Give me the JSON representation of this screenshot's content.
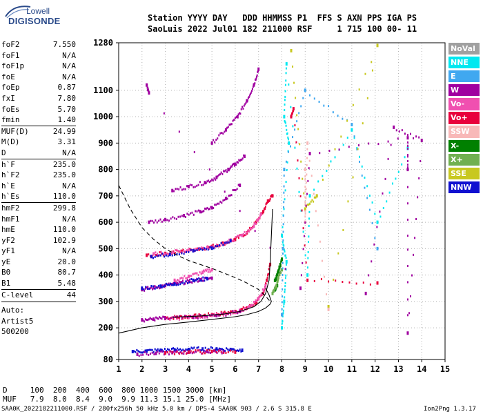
{
  "logo": {
    "line1": "Lowell",
    "line2": "DIGISONDE"
  },
  "header": {
    "line1": "Station YYYY DAY   DDD HHMMSS P1  FFS S AXN PPS IGA PS",
    "line2": "SaoLuis 2022 Jul01 182 211000 RSF     1 715 100 00- 11"
  },
  "params": [
    {
      "label": "foF2",
      "value": "7.550"
    },
    {
      "label": "foF1",
      "value": "N/A"
    },
    {
      "label": "foF1p",
      "value": "N/A"
    },
    {
      "label": "foE",
      "value": "N/A"
    },
    {
      "label": "foEp",
      "value": "0.87"
    },
    {
      "label": "fxI",
      "value": "7.80"
    },
    {
      "label": "foEs",
      "value": "5.70"
    },
    {
      "label": "fmin",
      "value": "1.40"
    },
    {
      "label": "MUF(D)",
      "value": "24.99",
      "sep": true
    },
    {
      "label": "M(D)",
      "value": "3.31"
    },
    {
      "label": "D",
      "value": "N/A"
    },
    {
      "label": "h`F",
      "value": "235.0",
      "sep": true
    },
    {
      "label": "h`F2",
      "value": "235.0"
    },
    {
      "label": "h`E",
      "value": "N/A"
    },
    {
      "label": "h`Es",
      "value": "110.0"
    },
    {
      "label": "hmF2",
      "value": "299.8",
      "sep": true
    },
    {
      "label": "hmF1",
      "value": "N/A"
    },
    {
      "label": "hmE",
      "value": "110.0"
    },
    {
      "label": "yF2",
      "value": "102.9"
    },
    {
      "label": "yF1",
      "value": "N/A"
    },
    {
      "label": "yE",
      "value": "20.0"
    },
    {
      "label": "B0",
      "value": "80.7"
    },
    {
      "label": "B1",
      "value": "5.48"
    },
    {
      "label": "C-level",
      "value": "44",
      "sep": true
    }
  ],
  "auto": [
    "Auto:",
    "Artist5",
    "500200"
  ],
  "legend": [
    {
      "label": "NoVal",
      "color": "#a0a0a0"
    },
    {
      "label": "NNE",
      "color": "#00e8f0"
    },
    {
      "label": "E",
      "color": "#40a8f0"
    },
    {
      "label": "W",
      "color": "#a000a0"
    },
    {
      "label": "Vo-",
      "color": "#f050b0"
    },
    {
      "label": "Vo+",
      "color": "#e8003c"
    },
    {
      "label": "SSW",
      "color": "#f8b8b8"
    },
    {
      "label": "X-",
      "color": "#008000"
    },
    {
      "label": "X+",
      "color": "#70b050"
    },
    {
      "label": "SSE",
      "color": "#c8c820"
    },
    {
      "label": "NNW",
      "color": "#1010d0"
    }
  ],
  "muf_table": {
    "line1": "D     100  200  400  600  800 1000 1500 3000 [km]",
    "line2": "MUF   7.9  8.0  8.4  9.0  9.9 11.3 15.1 25.0 [MHz]"
  },
  "footer": {
    "left": "SAA0K_2022182211000.RSF / 280fx256h 50 kHz 5.0 km / DPS-4 SAA0K 903 / 2.6 S 315.8 E",
    "right": "Ion2Png 1.3.17"
  },
  "chart_data": {
    "type": "scatter",
    "xlabel": "",
    "ylabel": "",
    "xlim": [
      1,
      15
    ],
    "ylim": [
      80,
      1280
    ],
    "x_ticks": [
      1,
      2,
      3,
      4,
      5,
      6,
      7,
      8,
      9,
      10,
      11,
      12,
      13,
      14,
      15
    ],
    "y_ticks": [
      80,
      200,
      300,
      400,
      500,
      600,
      700,
      800,
      900,
      1000,
      1100,
      1280
    ],
    "grid": "dotted",
    "series": [
      {
        "color": "#e8003c",
        "points": [
          [
            3.0,
            238
          ],
          [
            3.5,
            240
          ],
          [
            4.0,
            242
          ],
          [
            4.5,
            245
          ],
          [
            5.0,
            250
          ],
          [
            5.5,
            255
          ],
          [
            6.0,
            262
          ],
          [
            6.5,
            275
          ],
          [
            6.9,
            295
          ],
          [
            7.2,
            330
          ],
          [
            7.35,
            380
          ],
          [
            7.5,
            440
          ]
        ]
      },
      {
        "color": "#f050b0",
        "points": [
          [
            3.0,
            235
          ],
          [
            4.0,
            239
          ],
          [
            5.0,
            247
          ],
          [
            6.0,
            258
          ],
          [
            6.6,
            280
          ],
          [
            7.0,
            310
          ],
          [
            7.3,
            360
          ]
        ]
      },
      {
        "color": "#a000a0",
        "points": [
          [
            2.0,
            230
          ],
          [
            2.5,
            233
          ],
          [
            3.0,
            236
          ],
          [
            4.2,
            240
          ],
          [
            5.2,
            246
          ],
          [
            6.2,
            262
          ]
        ]
      },
      {
        "color": "#e8003c",
        "points": [
          [
            2.2,
            475
          ],
          [
            3.0,
            482
          ],
          [
            3.7,
            490
          ],
          [
            4.4,
            498
          ],
          [
            5.0,
            508
          ],
          [
            5.5,
            520
          ],
          [
            6.0,
            535
          ],
          [
            6.5,
            560
          ],
          [
            6.9,
            600
          ],
          [
            7.2,
            640
          ],
          [
            7.4,
            680
          ],
          [
            7.6,
            700
          ]
        ]
      },
      {
        "color": "#f050b0",
        "points": [
          [
            2.5,
            480
          ],
          [
            3.3,
            486
          ],
          [
            4.0,
            495
          ],
          [
            4.8,
            505
          ],
          [
            5.6,
            522
          ],
          [
            6.3,
            550
          ],
          [
            6.8,
            585
          ],
          [
            7.1,
            630
          ]
        ]
      },
      {
        "color": "#1010d0",
        "points": [
          [
            2.4,
            470
          ],
          [
            3.2,
            478
          ],
          [
            4.2,
            492
          ],
          [
            5.0,
            502
          ],
          [
            5.8,
            530
          ]
        ]
      },
      {
        "color": "#a000a0",
        "points": [
          [
            2.3,
            600
          ],
          [
            3.0,
            610
          ],
          [
            3.8,
            625
          ],
          [
            4.5,
            640
          ],
          [
            5.0,
            655
          ],
          [
            5.6,
            690
          ],
          [
            6.2,
            740
          ]
        ]
      },
      {
        "color": "#a000a0",
        "points": [
          [
            3.3,
            720
          ],
          [
            4.0,
            735
          ],
          [
            4.7,
            750
          ],
          [
            5.2,
            770
          ],
          [
            5.7,
            800
          ],
          [
            6.0,
            820
          ],
          [
            6.4,
            850
          ]
        ]
      },
      {
        "color": "#a000a0",
        "points": [
          [
            5.0,
            900
          ],
          [
            5.6,
            950
          ],
          [
            6.1,
            1000
          ],
          [
            6.5,
            1060
          ],
          [
            6.8,
            1120
          ],
          [
            7.0,
            1180
          ]
        ]
      },
      {
        "color": "#a000a0",
        "points": [
          [
            2.0,
            345
          ],
          [
            2.5,
            352
          ],
          [
            3.0,
            360
          ],
          [
            3.5,
            368
          ],
          [
            4.0,
            375
          ],
          [
            4.5,
            382
          ],
          [
            5.0,
            388
          ]
        ]
      },
      {
        "color": "#1010d0",
        "points": [
          [
            2.0,
            350
          ],
          [
            2.8,
            358
          ],
          [
            3.4,
            366
          ],
          [
            4.2,
            380
          ],
          [
            4.8,
            386
          ]
        ]
      },
      {
        "color": "#f050b0",
        "points": [
          [
            3.4,
            380
          ],
          [
            4.0,
            395
          ],
          [
            4.6,
            410
          ],
          [
            5.0,
            420
          ]
        ]
      },
      {
        "color": "#1010d0",
        "points": [
          [
            1.6,
            110
          ],
          [
            2.2,
            112
          ],
          [
            2.8,
            115
          ],
          [
            3.4,
            117
          ],
          [
            4.0,
            118
          ],
          [
            4.6,
            120
          ],
          [
            5.2,
            120
          ],
          [
            5.8,
            118
          ],
          [
            6.3,
            115
          ]
        ]
      },
      {
        "color": "#a000a0",
        "points": [
          [
            1.8,
            100
          ],
          [
            2.6,
            103
          ],
          [
            3.3,
            106
          ],
          [
            4.0,
            108
          ],
          [
            4.8,
            110
          ],
          [
            5.5,
            109
          ]
        ]
      },
      {
        "color": "#e8003c",
        "points": [
          [
            3.0,
            105
          ],
          [
            4.0,
            108
          ],
          [
            5.0,
            110
          ],
          [
            6.0,
            108
          ]
        ]
      },
      {
        "color": "#008000",
        "points": [
          [
            7.7,
            380
          ],
          [
            7.8,
            400
          ],
          [
            7.9,
            430
          ],
          [
            8.0,
            460
          ],
          [
            7.7,
            345
          ],
          [
            7.8,
            360
          ]
        ]
      },
      {
        "color": "#70b050",
        "points": [
          [
            7.6,
            330
          ],
          [
            7.75,
            355
          ],
          [
            7.85,
            390
          ],
          [
            8.0,
            420
          ]
        ]
      },
      {
        "color": "#00e8f0",
        "points": [
          [
            8.0,
            200
          ],
          [
            8.1,
            300
          ],
          [
            8.2,
            450
          ],
          [
            8.0,
            550
          ],
          [
            8.3,
            900
          ],
          [
            8.1,
            1000
          ],
          [
            8.2,
            1200
          ],
          [
            9.1,
            400
          ],
          [
            9.2,
            700
          ],
          [
            11.0,
            950
          ],
          [
            12.1,
            600
          ],
          [
            13.4,
            880
          ]
        ]
      },
      {
        "color": "#40a8f0",
        "points": [
          [
            8.0,
            250
          ],
          [
            8.05,
            500
          ],
          [
            8.1,
            800
          ],
          [
            9.0,
            1100
          ],
          [
            11.0,
            970
          ],
          [
            12.1,
            500
          ]
        ]
      },
      {
        "color": "#c8c820",
        "points": [
          [
            8.4,
            1250
          ],
          [
            9.0,
            650
          ],
          [
            9.5,
            700
          ],
          [
            12.1,
            1270
          ],
          [
            10.0,
            280
          ]
        ]
      },
      {
        "color": "#f8b8b8",
        "points": [
          [
            9.0,
            800
          ],
          [
            9.0,
            600
          ],
          [
            9.1,
            900
          ],
          [
            10.0,
            270
          ]
        ]
      },
      {
        "color": "#a000a0",
        "points": [
          [
            2.2,
            1120
          ],
          [
            2.3,
            1090
          ],
          [
            8.8,
            350
          ],
          [
            9.2,
            860
          ],
          [
            13.4,
            920
          ],
          [
            13.4,
            800
          ],
          [
            13.4,
            180
          ],
          [
            14.0,
            910
          ],
          [
            12.8,
            960
          ],
          [
            11.6,
            330
          ]
        ]
      },
      {
        "color": "#e8003c",
        "points": [
          [
            8.4,
            1000
          ],
          [
            8.5,
            1030
          ],
          [
            9.1,
            380
          ],
          [
            12.1,
            370
          ]
        ]
      }
    ],
    "curves": [
      {
        "style": "solid",
        "points": [
          [
            1.0,
            180
          ],
          [
            2.0,
            200
          ],
          [
            3.0,
            213
          ],
          [
            4.0,
            222
          ],
          [
            5.0,
            232
          ],
          [
            6.0,
            242
          ],
          [
            6.5,
            250
          ],
          [
            7.0,
            262
          ],
          [
            7.3,
            275
          ],
          [
            7.5,
            290
          ],
          [
            7.55,
            300
          ],
          [
            7.45,
            325
          ],
          [
            7.3,
            350
          ]
        ]
      },
      {
        "style": "solid",
        "points": [
          [
            3.3,
            240
          ],
          [
            4.5,
            245
          ],
          [
            5.5,
            252
          ],
          [
            6.2,
            262
          ],
          [
            6.8,
            280
          ],
          [
            7.1,
            300
          ],
          [
            7.3,
            330
          ],
          [
            7.45,
            380
          ],
          [
            7.5,
            450
          ],
          [
            7.55,
            550
          ],
          [
            7.6,
            650
          ]
        ]
      },
      {
        "style": "dashed",
        "points": [
          [
            1.0,
            740
          ],
          [
            1.5,
            650
          ],
          [
            2.0,
            580
          ],
          [
            2.5,
            535
          ],
          [
            3.0,
            500
          ],
          [
            3.5,
            475
          ],
          [
            4.0,
            455
          ],
          [
            4.5,
            440
          ],
          [
            5.0,
            425
          ],
          [
            5.5,
            408
          ],
          [
            6.0,
            390
          ],
          [
            6.5,
            370
          ],
          [
            7.0,
            345
          ],
          [
            7.3,
            320
          ],
          [
            7.5,
            300
          ]
        ]
      }
    ]
  }
}
